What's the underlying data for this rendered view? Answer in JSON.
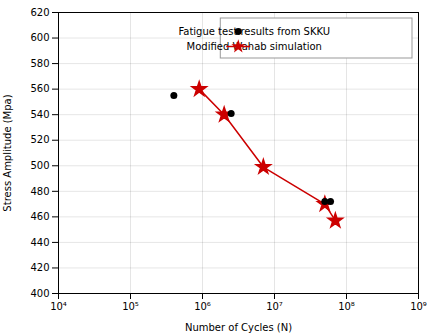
{
  "chart_data": {
    "type": "line",
    "xlabel": "Number of Cycles (N)",
    "ylabel": "Stress Amplitude (Mpa)",
    "log": "x",
    "xlim": [
      10000,
      1000000000
    ],
    "xticks": [
      {
        "value": 10000,
        "label": "10⁴"
      },
      {
        "value": 100000,
        "label": "10⁵"
      },
      {
        "value": 1000000,
        "label": "10⁶"
      },
      {
        "value": 10000000,
        "label": "10⁷"
      },
      {
        "value": 100000000,
        "label": "10⁸"
      },
      {
        "value": 1000000000,
        "label": "10⁹"
      }
    ],
    "ylim": [
      400,
      620
    ],
    "yticks": [
      400,
      420,
      440,
      460,
      480,
      500,
      520,
      540,
      560,
      580,
      600,
      620
    ],
    "grid": true,
    "legend": "upper right",
    "series": [
      {
        "name": "Fatigue test results from SKKU",
        "type": "scatter",
        "color": "#000000",
        "marker": "circle",
        "x": [
          400000,
          2500000,
          50000000,
          60000000
        ],
        "values": [
          555,
          541,
          472,
          472
        ]
      },
      {
        "name": "Modified Wahab simulation",
        "type": "line",
        "color": "#cc0000",
        "marker": "star",
        "x": [
          900000,
          2000000,
          7000000,
          50000000,
          70000000
        ],
        "values": [
          560,
          540,
          499,
          470,
          457
        ]
      }
    ]
  }
}
